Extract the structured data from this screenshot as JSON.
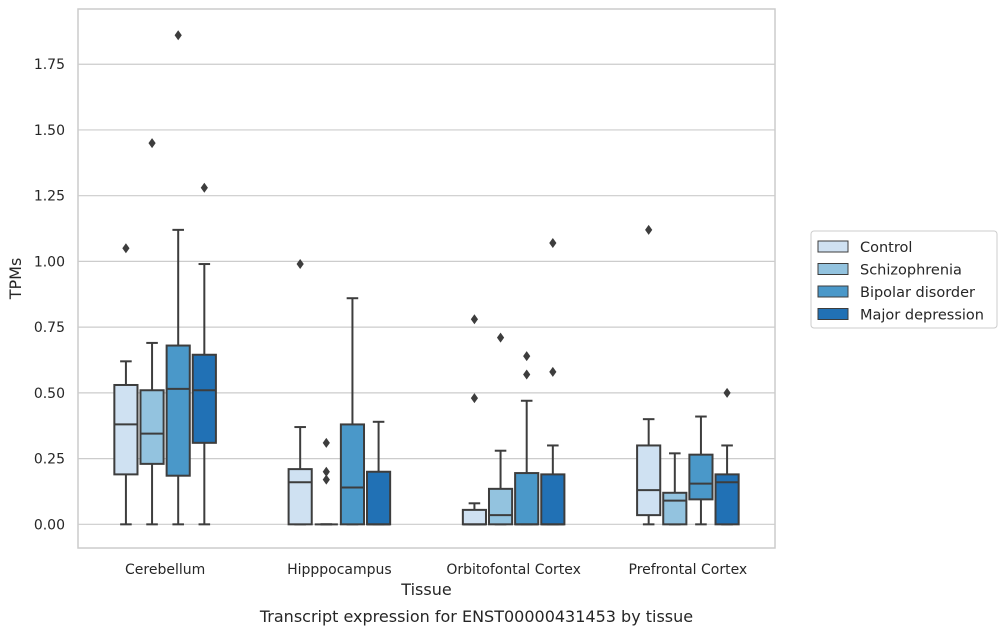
{
  "caption": "Transcript expression for ENST00000431453 by tissue",
  "chart_data": {
    "type": "box",
    "xlabel": "Tissue",
    "ylabel": "TPMs",
    "ylim": [
      -0.09,
      1.96
    ],
    "yticks": [
      0.0,
      0.25,
      0.5,
      0.75,
      1.0,
      1.25,
      1.5,
      1.75
    ],
    "ytick_labels": [
      "0.00",
      "0.25",
      "0.50",
      "0.75",
      "1.00",
      "1.25",
      "1.50",
      "1.75"
    ],
    "grid": "horizontal",
    "legend_position": "right",
    "categories": [
      "Cerebellum",
      "Hipppocampus",
      "Orbitofontal Cortex",
      "Prefrontal Cortex"
    ],
    "series": [
      {
        "name": "Control",
        "color": "#cfe1f2",
        "boxes": [
          {
            "whislo": 0.0,
            "q1": 0.19,
            "med": 0.38,
            "q3": 0.53,
            "whishi": 0.62,
            "fliers": [
              1.05
            ]
          },
          {
            "whislo": 0.0,
            "q1": 0.0,
            "med": 0.16,
            "q3": 0.21,
            "whishi": 0.37,
            "fliers": [
              0.99
            ]
          },
          {
            "whislo": 0.0,
            "q1": 0.0,
            "med": 0.0,
            "q3": 0.055,
            "whishi": 0.08,
            "fliers": [
              0.48,
              0.78
            ]
          },
          {
            "whislo": 0.0,
            "q1": 0.035,
            "med": 0.13,
            "q3": 0.3,
            "whishi": 0.4,
            "fliers": [
              1.12
            ]
          }
        ]
      },
      {
        "name": "Schizophrenia",
        "color": "#93c3df",
        "boxes": [
          {
            "whislo": 0.0,
            "q1": 0.23,
            "med": 0.345,
            "q3": 0.51,
            "whishi": 0.69,
            "fliers": [
              1.45
            ]
          },
          {
            "whislo": 0.0,
            "q1": 0.0,
            "med": 0.0,
            "q3": 0.0,
            "whishi": 0.0,
            "fliers": [
              0.17,
              0.2,
              0.31
            ]
          },
          {
            "whislo": 0.0,
            "q1": 0.0,
            "med": 0.035,
            "q3": 0.135,
            "whishi": 0.28,
            "fliers": [
              0.71
            ]
          },
          {
            "whislo": 0.0,
            "q1": 0.0,
            "med": 0.09,
            "q3": 0.12,
            "whishi": 0.27,
            "fliers": []
          }
        ]
      },
      {
        "name": "Bipolar disorder",
        "color": "#4a98c9",
        "boxes": [
          {
            "whislo": 0.0,
            "q1": 0.185,
            "med": 0.515,
            "q3": 0.68,
            "whishi": 1.12,
            "fliers": [
              1.86
            ]
          },
          {
            "whislo": 0.0,
            "q1": 0.0,
            "med": 0.14,
            "q3": 0.38,
            "whishi": 0.86,
            "fliers": []
          },
          {
            "whislo": 0.0,
            "q1": 0.0,
            "med": 0.0,
            "q3": 0.195,
            "whishi": 0.47,
            "fliers": [
              0.57,
              0.64
            ]
          },
          {
            "whislo": 0.0,
            "q1": 0.095,
            "med": 0.155,
            "q3": 0.265,
            "whishi": 0.41,
            "fliers": []
          }
        ]
      },
      {
        "name": "Major depression",
        "color": "#2171b5",
        "boxes": [
          {
            "whislo": 0.0,
            "q1": 0.31,
            "med": 0.51,
            "q3": 0.645,
            "whishi": 0.99,
            "fliers": [
              1.28
            ]
          },
          {
            "whislo": 0.0,
            "q1": 0.0,
            "med": 0.0,
            "q3": 0.2,
            "whishi": 0.39,
            "fliers": []
          },
          {
            "whislo": 0.0,
            "q1": 0.0,
            "med": 0.0,
            "q3": 0.19,
            "whishi": 0.3,
            "fliers": [
              0.58,
              1.07
            ]
          },
          {
            "whislo": 0.0,
            "q1": 0.0,
            "med": 0.16,
            "q3": 0.19,
            "whishi": 0.3,
            "fliers": [
              0.5
            ]
          }
        ]
      }
    ]
  }
}
